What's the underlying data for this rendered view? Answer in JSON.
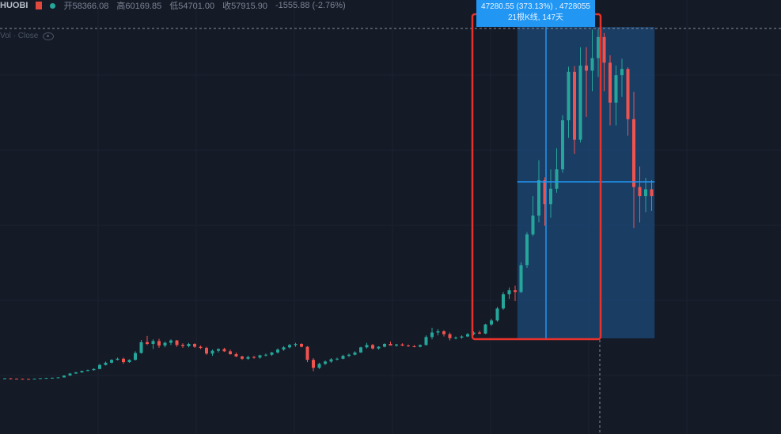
{
  "header": {
    "symbol": "HUOBI",
    "open_label": "开",
    "open_value": "58366.08",
    "high_label": "高",
    "high_value": "60169.85",
    "low_label": "低",
    "low_value": "54701.00",
    "close_label": "收",
    "close_value": "57915.90",
    "change_value": "-1555.88 (-2.76%)"
  },
  "legend": {
    "label": "Vol · Close"
  },
  "measure_label": {
    "line1": "47280.55 (373.13%) , 4728055",
    "line2": "21根K线, 147天"
  },
  "colors": {
    "background": "#141a26",
    "up": "#26a69a",
    "down": "#ef5350",
    "highlight_fill": "#1c4a7a",
    "highlight_box": "#e8322b",
    "measure_accent": "#2196f3"
  },
  "chart_data": {
    "type": "candlestick",
    "title": "",
    "xlabel": "",
    "ylabel": "",
    "ylim": [
      0,
      65000
    ],
    "candles": [
      [
        3600,
        3700,
        3550,
        3650
      ],
      [
        3650,
        3700,
        3500,
        3600
      ],
      [
        3600,
        3650,
        3550,
        3580
      ],
      [
        3580,
        3620,
        3520,
        3560
      ],
      [
        3560,
        3600,
        3500,
        3550
      ],
      [
        3550,
        3620,
        3520,
        3600
      ],
      [
        3600,
        3700,
        3580,
        3680
      ],
      [
        3680,
        3760,
        3640,
        3720
      ],
      [
        3720,
        3800,
        3680,
        3760
      ],
      [
        3760,
        3850,
        3700,
        3820
      ],
      [
        3820,
        4200,
        3800,
        4150
      ],
      [
        4150,
        4600,
        4100,
        4500
      ],
      [
        4500,
        4800,
        4450,
        4700
      ],
      [
        4700,
        5000,
        4650,
        4950
      ],
      [
        4950,
        5200,
        4900,
        5100
      ],
      [
        5100,
        5400,
        5000,
        5300
      ],
      [
        5300,
        6200,
        5250,
        6000
      ],
      [
        6000,
        6600,
        5900,
        6400
      ],
      [
        6400,
        7000,
        6300,
        6900
      ],
      [
        6900,
        7300,
        6800,
        7100
      ],
      [
        7100,
        7300,
        6200,
        6500
      ],
      [
        6500,
        7000,
        6400,
        6900
      ],
      [
        6900,
        8400,
        6800,
        8100
      ],
      [
        8100,
        10400,
        8000,
        10000
      ],
      [
        10000,
        11100,
        9500,
        9700
      ],
      [
        9700,
        10500,
        8800,
        10200
      ],
      [
        10200,
        10600,
        9000,
        9400
      ],
      [
        9400,
        10100,
        9100,
        9900
      ],
      [
        9900,
        10500,
        9500,
        10300
      ],
      [
        10300,
        10400,
        9200,
        9500
      ],
      [
        9500,
        9800,
        9000,
        9300
      ],
      [
        9300,
        9900,
        9100,
        9700
      ],
      [
        9700,
        9800,
        9000,
        9200
      ],
      [
        9200,
        9400,
        8800,
        9000
      ],
      [
        9000,
        9200,
        7800,
        8000
      ],
      [
        8000,
        8700,
        7600,
        8500
      ],
      [
        8500,
        8900,
        8200,
        8800
      ],
      [
        8800,
        9000,
        8300,
        8400
      ],
      [
        8400,
        8700,
        7800,
        7900
      ],
      [
        7900,
        8200,
        7400,
        7500
      ],
      [
        7500,
        7600,
        6900,
        7100
      ],
      [
        7100,
        7600,
        6900,
        7400
      ],
      [
        7400,
        7600,
        7100,
        7300
      ],
      [
        7300,
        7800,
        7100,
        7700
      ],
      [
        7700,
        8000,
        7500,
        7800
      ],
      [
        7800,
        8300,
        7600,
        8200
      ],
      [
        8200,
        8900,
        8000,
        8700
      ],
      [
        8700,
        9300,
        8500,
        9100
      ],
      [
        9100,
        9700,
        8900,
        9500
      ],
      [
        9500,
        9900,
        9200,
        9700
      ],
      [
        9700,
        9800,
        9100,
        9200
      ],
      [
        9200,
        9300,
        6500,
        6900
      ],
      [
        6900,
        7200,
        4900,
        5500
      ],
      [
        5500,
        6400,
        5300,
        6200
      ],
      [
        6200,
        6800,
        6000,
        6600
      ],
      [
        6600,
        7200,
        6400,
        7000
      ],
      [
        7000,
        7300,
        6800,
        7100
      ],
      [
        7100,
        7800,
        7000,
        7600
      ],
      [
        7600,
        8000,
        7400,
        7800
      ],
      [
        7800,
        8400,
        7700,
        8200
      ],
      [
        8200,
        9200,
        8100,
        9100
      ],
      [
        9100,
        9900,
        8900,
        9500
      ],
      [
        9500,
        9700,
        8700,
        8900
      ],
      [
        8900,
        9300,
        8700,
        9200
      ],
      [
        9200,
        9800,
        9100,
        9700
      ],
      [
        9700,
        10100,
        9500,
        9400
      ],
      [
        9400,
        9700,
        9200,
        9600
      ],
      [
        9600,
        9800,
        9300,
        9400
      ],
      [
        9400,
        9600,
        9200,
        9300
      ],
      [
        9300,
        9500,
        9100,
        9200
      ],
      [
        9200,
        9600,
        9100,
        9500
      ],
      [
        9500,
        11200,
        9400,
        10900
      ],
      [
        10900,
        12500,
        10500,
        11700
      ],
      [
        11700,
        12300,
        11200,
        11900
      ],
      [
        11900,
        12100,
        11000,
        11400
      ],
      [
        11400,
        11700,
        10300,
        10700
      ],
      [
        10700,
        11000,
        10500,
        10800
      ],
      [
        10800,
        11200,
        10600,
        11000
      ],
      [
        11000,
        11600,
        10900,
        11400
      ],
      [
        11400,
        11900,
        11200,
        11700
      ],
      [
        11700,
        12000,
        11400,
        11500
      ],
      [
        11500,
        13200,
        11400,
        13100
      ],
      [
        13100,
        14100,
        12900,
        13800
      ],
      [
        13800,
        16200,
        13600,
        15900
      ],
      [
        15900,
        18800,
        15700,
        18400
      ],
      [
        18400,
        19600,
        17600,
        19100
      ],
      [
        19100,
        19900,
        17200,
        18800
      ],
      [
        18800,
        24000,
        18600,
        23500
      ],
      [
        23500,
        29300,
        23000,
        28900
      ],
      [
        28900,
        35600,
        28600,
        32200
      ],
      [
        32200,
        41900,
        31000,
        38400
      ],
      [
        38400,
        38900,
        30400,
        34200
      ],
      [
        34200,
        40300,
        31800,
        36900
      ],
      [
        36900,
        44000,
        36200,
        40300
      ],
      [
        40300,
        49800,
        39700,
        48900
      ],
      [
        48900,
        58300,
        45800,
        57400
      ],
      [
        57400,
        58400,
        43000,
        45500
      ],
      [
        45500,
        61700,
        45000,
        58500
      ],
      [
        58500,
        61700,
        49500,
        57600
      ],
      [
        57600,
        64800,
        54000,
        59800
      ],
      [
        59800,
        64900,
        56500,
        63500
      ],
      [
        63500,
        64200,
        54000,
        59000
      ],
      [
        59000,
        60300,
        48000,
        52000
      ],
      [
        52000,
        58500,
        48000,
        56800
      ],
      [
        56800,
        59700,
        53000,
        57900
      ],
      [
        57900,
        58200,
        46200,
        49100
      ],
      [
        49100,
        53900,
        30000,
        37200
      ],
      [
        37200,
        40800,
        31000,
        35600
      ],
      [
        35600,
        38800,
        32800,
        36800
      ],
      [
        36800,
        38400,
        33000,
        35600
      ]
    ],
    "measure_range": {
      "start_index": 89,
      "end_index": 109,
      "bars": 21,
      "days": 147,
      "change": 47280.55,
      "change_pct": 373.13
    }
  }
}
